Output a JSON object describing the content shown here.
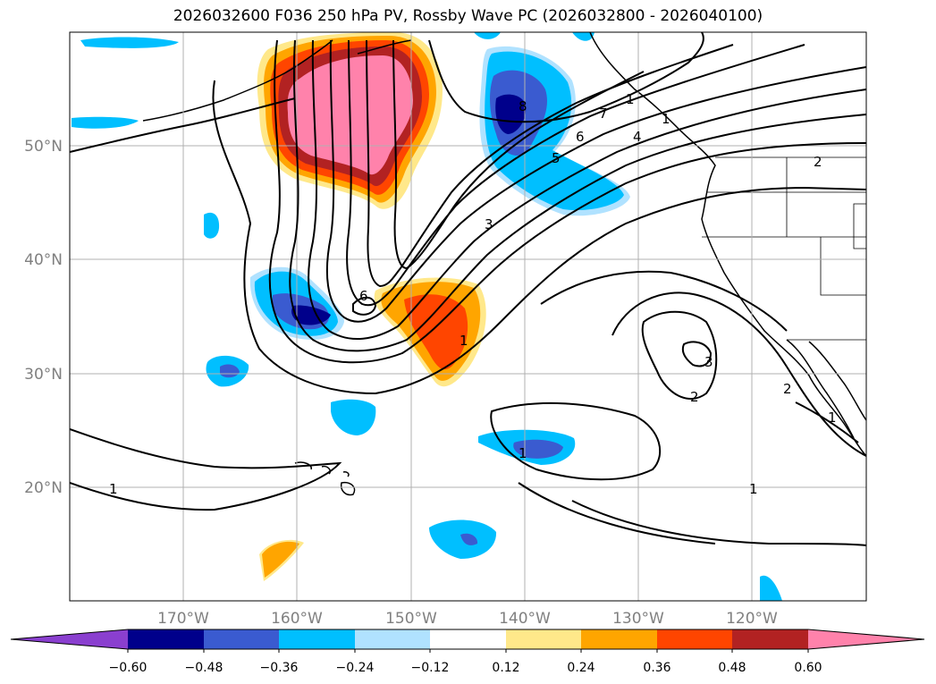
{
  "title": "2026032600 F036 250 hPa PV, Rossby Wave PC (2026032800 - 2026040100)",
  "map": {
    "lat_labels": [
      {
        "text": "50°N",
        "lat": 50
      },
      {
        "text": "40°N",
        "lat": 40
      },
      {
        "text": "30°N",
        "lat": 30
      },
      {
        "text": "20°N",
        "lat": 20
      }
    ],
    "lon_labels": [
      {
        "text": "170°W",
        "lon": -170
      },
      {
        "text": "160°W",
        "lon": -160
      },
      {
        "text": "150°W",
        "lon": -150
      },
      {
        "text": "140°W",
        "lon": -140
      },
      {
        "text": "130°W",
        "lon": -130
      },
      {
        "text": "120°W",
        "lon": -120
      }
    ],
    "extent": {
      "lon_min": -180,
      "lon_max": -110,
      "lat_min": 10,
      "lat_max": 60
    },
    "grid": true,
    "contour_labels": [
      "8",
      "7",
      "6",
      "5",
      "4",
      "3",
      "2",
      "1",
      "1",
      "1",
      "1",
      "1",
      "2",
      "3",
      "6",
      "1",
      "1",
      "2"
    ]
  },
  "colorbar": {
    "ticks": [
      "−0.60",
      "−0.48",
      "−0.36",
      "−0.24",
      "−0.12",
      "0.12",
      "0.24",
      "0.36",
      "0.48",
      "0.60"
    ],
    "colors": [
      "#8a3fcf",
      "#00008b",
      "#3a5bd0",
      "#00bfff",
      "#b0e2ff",
      "#ffffff",
      "#ffe88a",
      "#ffa500",
      "#ff4500",
      "#b22222",
      "#ff82ab"
    ]
  }
}
